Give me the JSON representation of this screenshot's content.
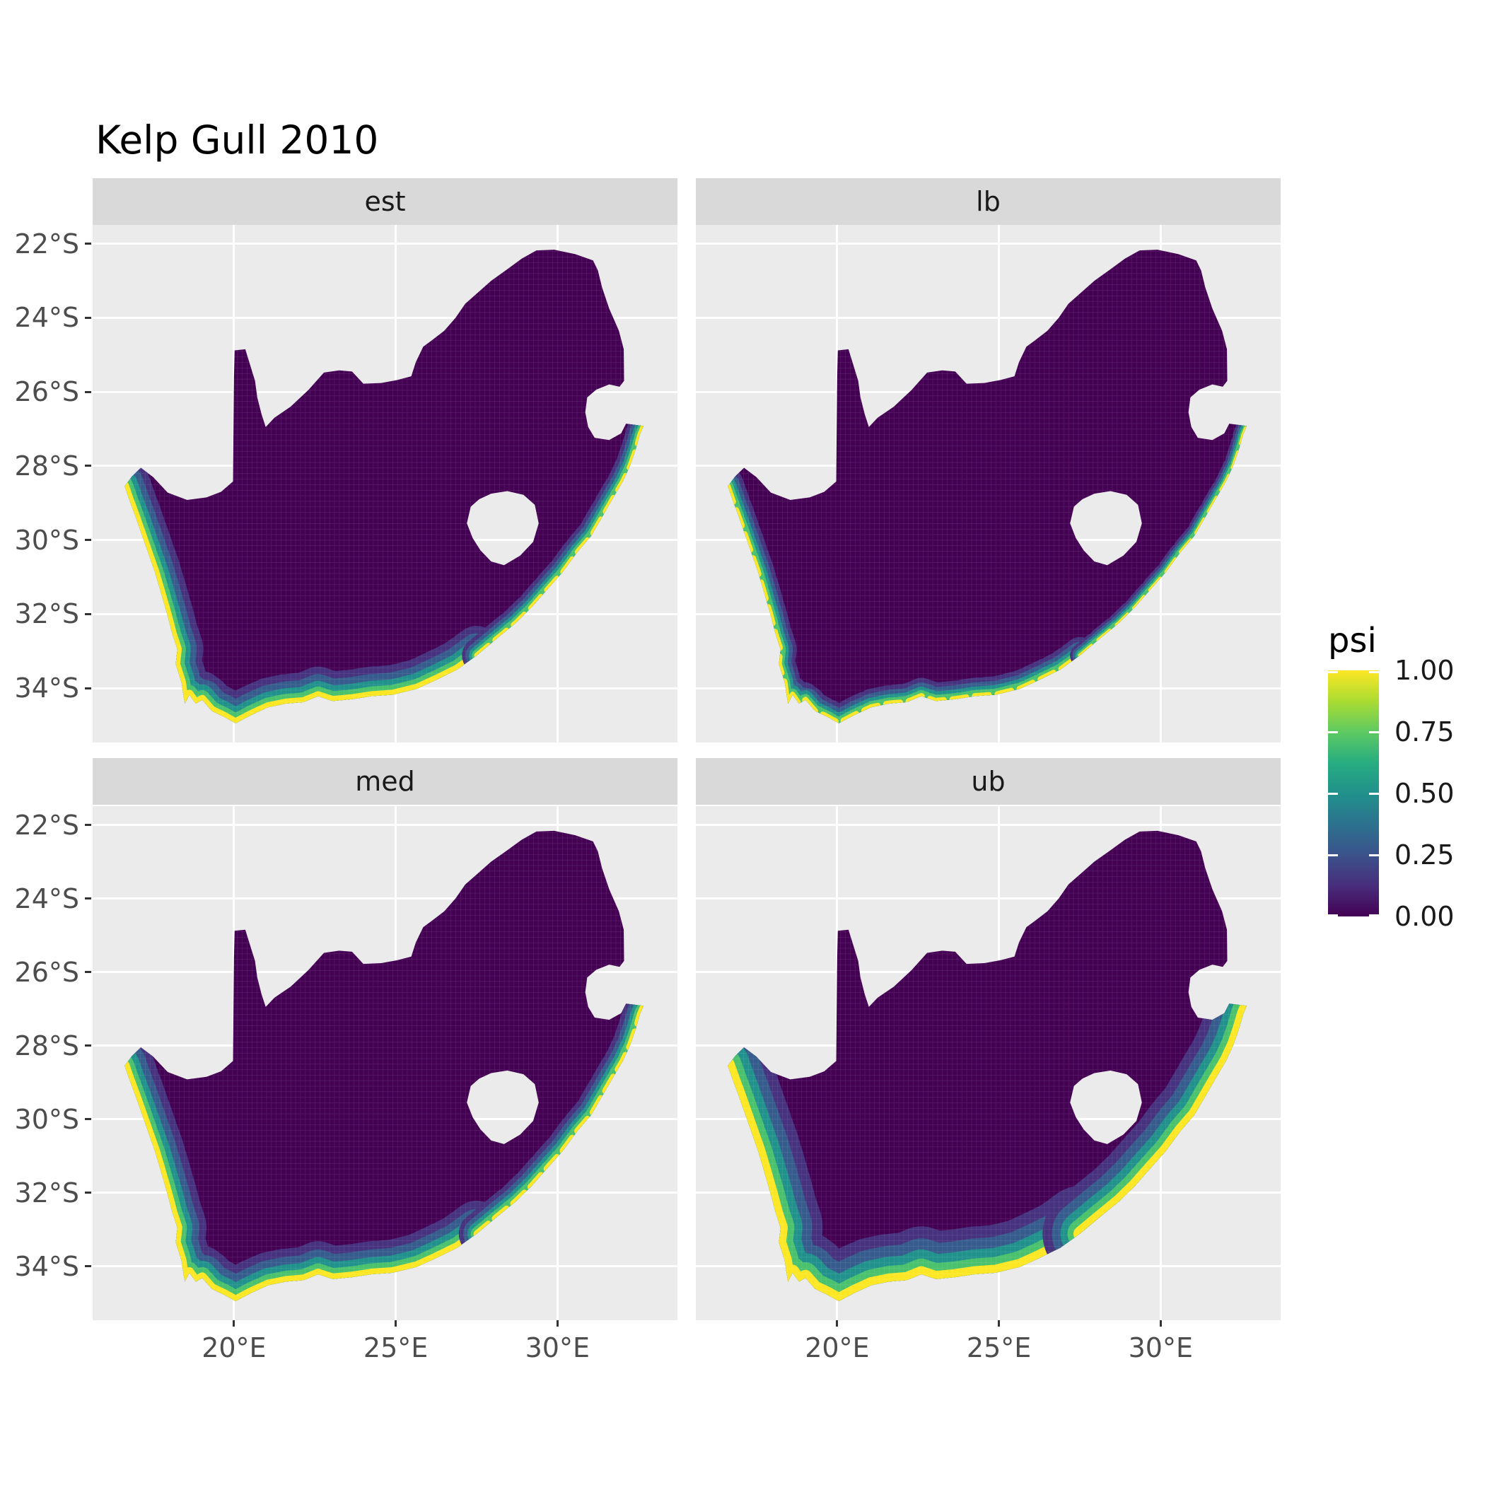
{
  "title": "Kelp Gull 2010",
  "axes": {
    "x_tick_labels": [
      "20°E",
      "25°E",
      "30°E"
    ],
    "y_tick_labels": [
      "22°S",
      "24°S",
      "26°S",
      "28°S",
      "30°S",
      "32°S",
      "34°S"
    ]
  },
  "facets": [
    {
      "label": "est"
    },
    {
      "label": "lb"
    },
    {
      "label": "med"
    },
    {
      "label": "ub"
    }
  ],
  "legend": {
    "title": "psi",
    "tick_labels": [
      "1.00",
      "0.75",
      "0.50",
      "0.25",
      "0.00"
    ],
    "viridis_stops": [
      "#440154",
      "#472d7b",
      "#3b528b",
      "#2c728e",
      "#21918c",
      "#27ad81",
      "#5ec962",
      "#aadc32",
      "#fde725"
    ]
  },
  "colors": {
    "base_fill": "#440154",
    "panel_bg": "#ebebeb",
    "strip_bg": "#d9d9d9",
    "grid": "#ffffff",
    "axis_text": "#4d4d4d",
    "tick_mark": "#333333",
    "strip_text": "#1a1a1a"
  },
  "chart_data": {
    "type": "heatmap",
    "title": "Kelp Gull 2010",
    "facet_variable": "estimate type",
    "facets": [
      "est",
      "lb",
      "med",
      "ub"
    ],
    "fill_variable": "psi",
    "fill_range": [
      0,
      1
    ],
    "colorscale": "viridis",
    "legend_breaks": [
      0.0,
      0.25,
      0.5,
      0.75,
      1.0
    ],
    "region": "South Africa mainland raster (~0.15 deg cells); Lesotho and Eswatini are unfilled holes",
    "x_axis": {
      "ticks": [
        20,
        25,
        30
      ],
      "tick_labels": [
        "20°E",
        "25°E",
        "30°E"
      ],
      "range_deg_east": [
        15.63,
        33.71
      ]
    },
    "y_axis": {
      "ticks": [
        -22,
        -24,
        -26,
        -28,
        -30,
        -32,
        -34
      ],
      "tick_labels": [
        "22°S",
        "24°S",
        "26°S",
        "28°S",
        "30°S",
        "32°S",
        "34°S"
      ],
      "range_deg_lat": [
        -35.47,
        -21.49
      ]
    },
    "values_summary": "psi is ~0 (dark purple) over nearly all interior cells in every facet; psi rises toward 1 (yellow) in a narrow band of cells along the west and south coasts, and more weakly up the east coast; band is thinnest in lb, moderate in est and med, thickest in ub",
    "coastal_band_depth_deg": {
      "est": 0.8,
      "lb": 0.5,
      "med": 0.9,
      "ub": 1.3
    },
    "east_coast_band_depth_deg": {
      "est": 0.45,
      "lb": 0.3,
      "med": 0.55,
      "ub": 1.15
    }
  }
}
